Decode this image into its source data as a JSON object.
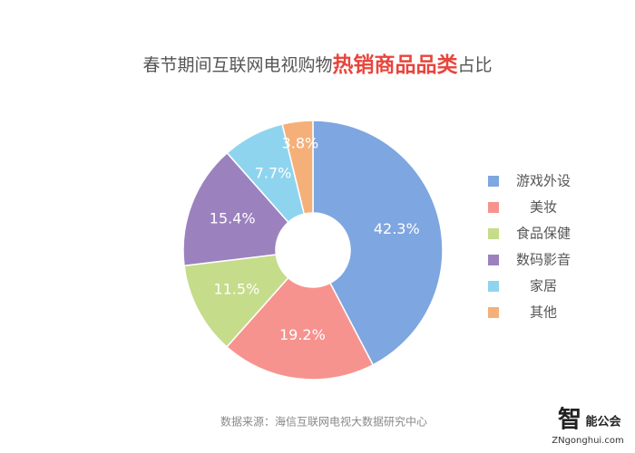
{
  "chart_data": {
    "type": "donut",
    "title_parts": [
      "春节期间互联网电视购物",
      "热销商品品类",
      "占比"
    ],
    "categories": [
      "游戏外设",
      "美妆",
      "食品保健",
      "数码影音",
      "家居",
      "其他"
    ],
    "values": [
      42.3,
      19.2,
      11.5,
      15.4,
      7.7,
      3.8
    ],
    "value_labels": [
      "42.3%",
      "19.2%",
      "11.5%",
      "15.4%",
      "7.7%",
      "3.8%"
    ],
    "colors": [
      "#7ea6e0",
      "#f7938e",
      "#c5dc8a",
      "#9b82be",
      "#8fd4ef",
      "#f5b07a"
    ],
    "legend": "right",
    "source": "数据来源：海信互联网电视大数据研究中心",
    "watermark": [
      "智",
      "能公会",
      "ZNgonghui.com"
    ]
  }
}
